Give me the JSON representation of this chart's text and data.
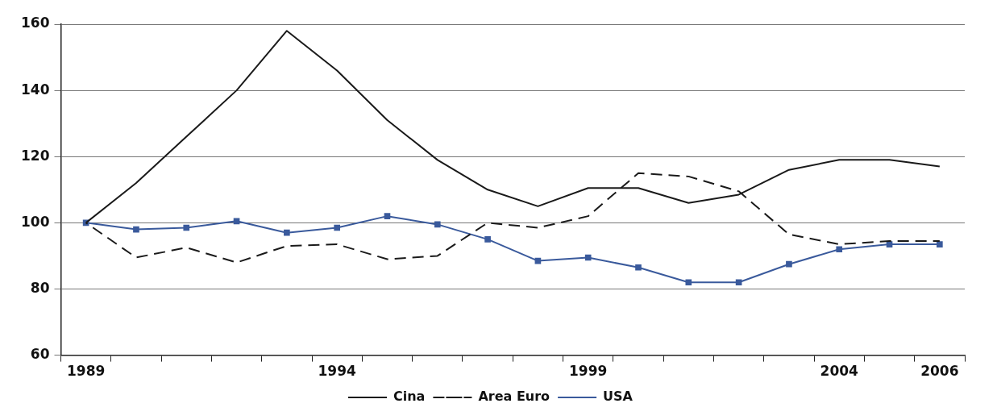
{
  "chart_data": {
    "type": "line",
    "categories": [
      "1989",
      null,
      null,
      null,
      null,
      "1994",
      null,
      null,
      null,
      null,
      "1999",
      null,
      null,
      null,
      null,
      "2004",
      null,
      "2006"
    ],
    "series": [
      {
        "name": "Cina",
        "color": "#1a1a1a",
        "line_style": "solid",
        "marker": "none",
        "values": [
          100,
          112,
          126,
          140,
          158,
          146,
          131,
          119,
          110,
          105,
          110.5,
          110.5,
          106,
          108.5,
          116,
          119,
          119,
          117
        ]
      },
      {
        "name": "Area Euro",
        "color": "#1a1a1a",
        "line_style": "dashed",
        "marker": "none",
        "values": [
          100,
          89.5,
          92.5,
          88,
          93,
          93.5,
          89,
          90,
          100,
          98.5,
          102,
          115,
          114,
          109.5,
          96.5,
          93.5,
          94.5,
          94.5
        ]
      },
      {
        "name": "USA",
        "color": "#3a5a9c",
        "line_style": "solid",
        "marker": "square",
        "values": [
          100,
          98,
          98.5,
          100.5,
          97,
          98.5,
          102,
          99.5,
          95,
          88.5,
          89.5,
          86.5,
          82,
          82,
          87.5,
          92,
          93.5,
          93.5
        ]
      }
    ],
    "ylim": [
      60,
      160
    ],
    "yticks": [
      60,
      80,
      100,
      120,
      140,
      160
    ],
    "grid": "y",
    "legend": "bottom"
  }
}
